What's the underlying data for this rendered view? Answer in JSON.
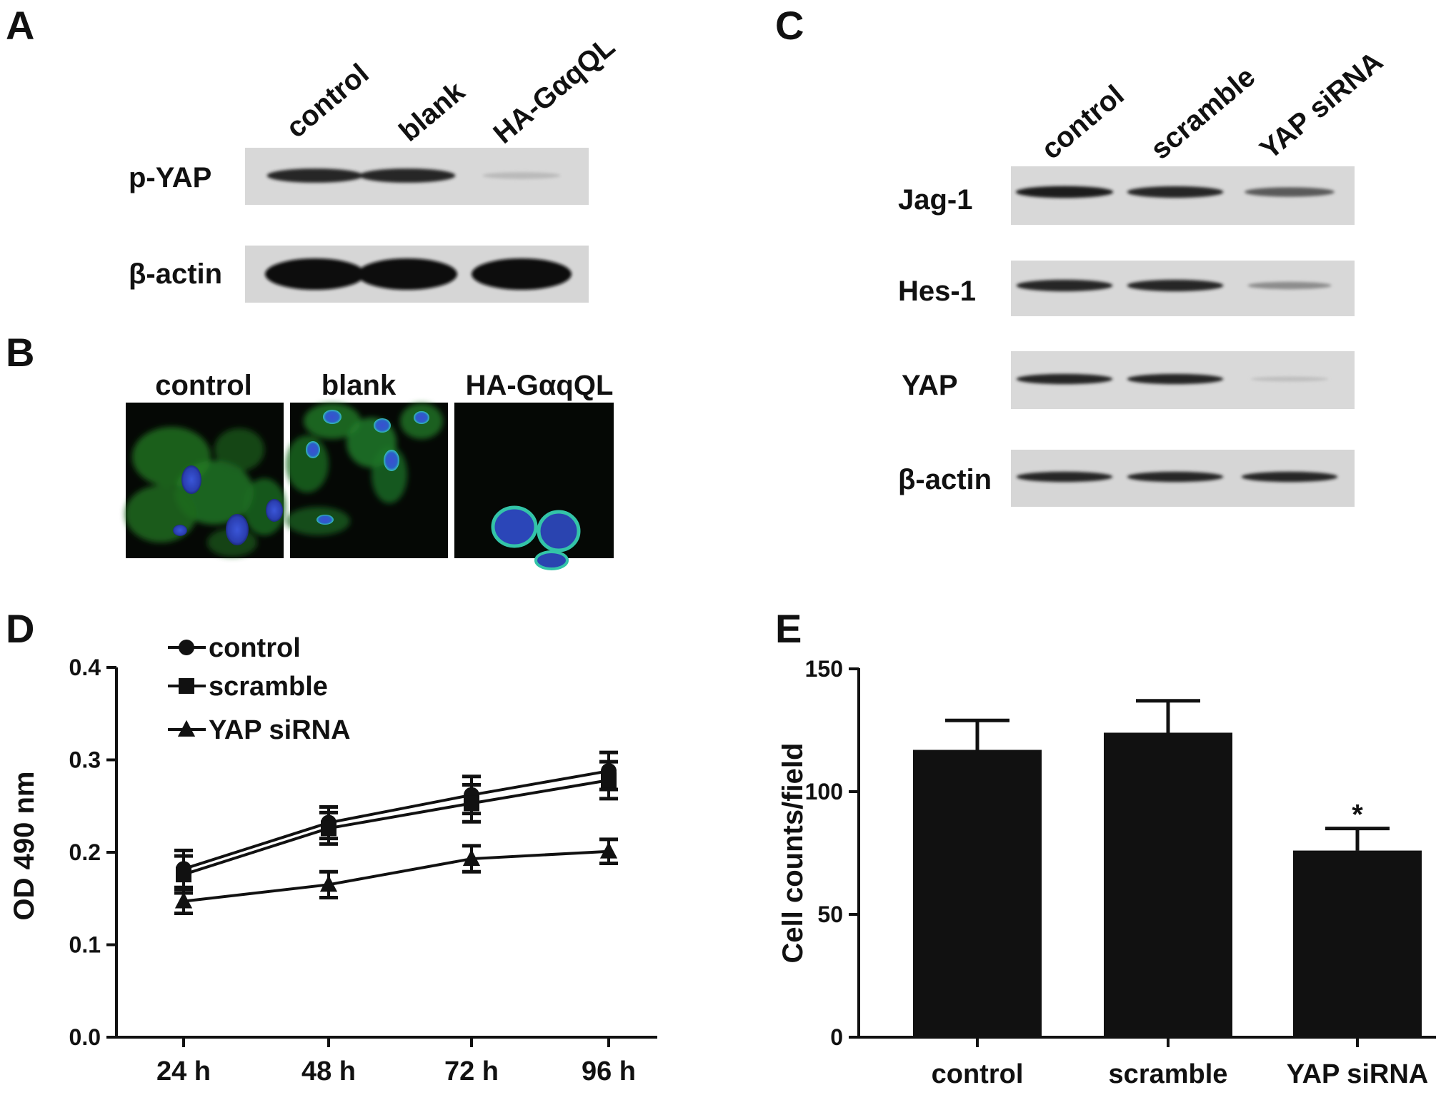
{
  "panels": {
    "A": {
      "letter": "A",
      "lanes": [
        "control",
        "blank",
        "HA-GαqQL"
      ],
      "rows": [
        {
          "label": "p-YAP",
          "intensity": [
            0.85,
            0.85,
            0.12
          ]
        },
        {
          "label": "β-actin",
          "intensity": [
            1.0,
            1.0,
            1.0
          ]
        }
      ]
    },
    "B": {
      "letter": "B",
      "labels": [
        "control",
        "blank",
        "HA-GαqQL"
      ]
    },
    "C": {
      "letter": "C",
      "lanes": [
        "control",
        "scramble",
        "YAP siRNA"
      ],
      "rows": [
        {
          "label": "Jag-1",
          "intensity": [
            0.9,
            0.85,
            0.6
          ]
        },
        {
          "label": "Hes-1",
          "intensity": [
            0.85,
            0.85,
            0.35
          ]
        },
        {
          "label": "YAP",
          "intensity": [
            0.85,
            0.85,
            0.1
          ]
        },
        {
          "label": "β-actin",
          "intensity": [
            0.85,
            0.85,
            0.85
          ]
        }
      ]
    },
    "D": {
      "letter": "D"
    },
    "E": {
      "letter": "E"
    }
  },
  "chart_data": [
    {
      "panel": "D",
      "type": "line",
      "x": [
        "24 h",
        "48 h",
        "72 h",
        "96 h"
      ],
      "ylabel": "OD 490 nm",
      "ylim": [
        0,
        0.4
      ],
      "yticks": [
        "0.0",
        "0.1",
        "0.2",
        "0.3",
        "0.4"
      ],
      "legend_position": "top-left",
      "series": [
        {
          "name": "control",
          "marker": "circle",
          "values": [
            0.182,
            0.232,
            0.262,
            0.288
          ],
          "err": [
            0.02,
            0.017,
            0.02,
            0.02
          ]
        },
        {
          "name": "scramble",
          "marker": "square",
          "values": [
            0.176,
            0.226,
            0.253,
            0.278
          ],
          "err": [
            0.02,
            0.017,
            0.02,
            0.02
          ]
        },
        {
          "name": "YAP siRNA",
          "marker": "triangle",
          "values": [
            0.147,
            0.165,
            0.193,
            0.201
          ],
          "err": [
            0.013,
            0.014,
            0.014,
            0.013
          ]
        }
      ]
    },
    {
      "panel": "E",
      "type": "bar",
      "categories": [
        "control",
        "scramble",
        "YAP siRNA"
      ],
      "values": [
        117,
        124,
        76
      ],
      "err": [
        12,
        13,
        9
      ],
      "ylabel": "Cell counts/field",
      "ylim": [
        0,
        150
      ],
      "yticks": [
        "0",
        "50",
        "100",
        "150"
      ],
      "annotations": [
        "",
        "",
        "*"
      ]
    }
  ]
}
